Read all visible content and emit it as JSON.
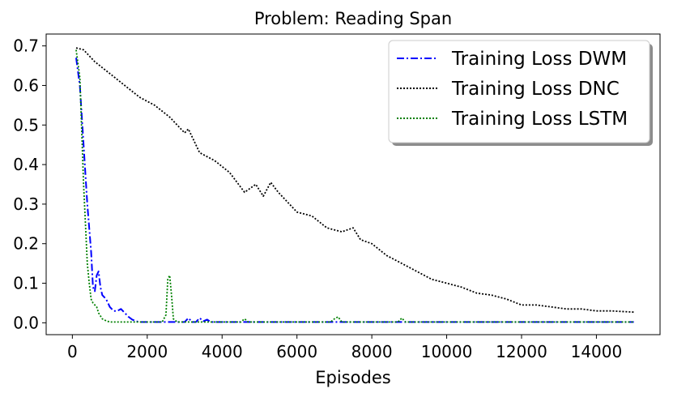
{
  "chart_data": {
    "type": "line",
    "title": "Problem: Reading Span",
    "xlabel": "Episodes",
    "ylabel": "",
    "xlim": [
      -700,
      15700
    ],
    "ylim": [
      -0.03,
      0.73
    ],
    "xticks": [
      0,
      2000,
      4000,
      6000,
      8000,
      10000,
      12000,
      14000
    ],
    "xtick_labels": [
      "0",
      "2000",
      "4000",
      "6000",
      "8000",
      "10000",
      "12000",
      "14000"
    ],
    "yticks": [
      0.0,
      0.1,
      0.2,
      0.3,
      0.4,
      0.5,
      0.6,
      0.7
    ],
    "ytick_labels": [
      "0.0",
      "0.1",
      "0.2",
      "0.3",
      "0.4",
      "0.5",
      "0.6",
      "0.7"
    ],
    "grid": false,
    "legend_position": "top-right",
    "series": [
      {
        "name": "Training Loss DWM",
        "color": "#0000ff",
        "style": "dashdot",
        "x": [
          100,
          200,
          300,
          400,
          500,
          550,
          600,
          650,
          700,
          750,
          800,
          900,
          1000,
          1100,
          1200,
          1300,
          1400,
          1500,
          1600,
          1700,
          1800,
          2000,
          2500,
          3000,
          3100,
          3200,
          3300,
          3400,
          3500,
          3600,
          3700,
          4000,
          6000,
          8000,
          10000,
          12000,
          14000,
          15000
        ],
        "y": [
          0.67,
          0.6,
          0.45,
          0.3,
          0.18,
          0.09,
          0.08,
          0.12,
          0.13,
          0.09,
          0.07,
          0.06,
          0.04,
          0.03,
          0.03,
          0.035,
          0.025,
          0.015,
          0.008,
          0.004,
          0.002,
          0.002,
          0.002,
          0.002,
          0.012,
          0.002,
          0.002,
          0.012,
          0.004,
          0.008,
          0.002,
          0.002,
          0.002,
          0.002,
          0.002,
          0.002,
          0.002,
          0.002
        ]
      },
      {
        "name": "Training Loss DNC",
        "color": "#000000",
        "style": "dotted",
        "x": [
          100,
          300,
          600,
          1000,
          1400,
          1800,
          2200,
          2600,
          3000,
          3100,
          3400,
          3800,
          4200,
          4600,
          4900,
          5100,
          5300,
          5500,
          5800,
          6000,
          6400,
          6800,
          7200,
          7500,
          7700,
          8000,
          8400,
          8800,
          9200,
          9600,
          10000,
          10400,
          10800,
          11200,
          11600,
          12000,
          12400,
          12800,
          13200,
          13600,
          14000,
          14400,
          15000
        ],
        "y": [
          0.695,
          0.69,
          0.66,
          0.63,
          0.6,
          0.57,
          0.55,
          0.52,
          0.48,
          0.49,
          0.43,
          0.41,
          0.38,
          0.33,
          0.35,
          0.32,
          0.355,
          0.33,
          0.3,
          0.28,
          0.27,
          0.24,
          0.23,
          0.24,
          0.21,
          0.2,
          0.17,
          0.15,
          0.13,
          0.11,
          0.1,
          0.09,
          0.075,
          0.07,
          0.06,
          0.045,
          0.045,
          0.04,
          0.035,
          0.035,
          0.03,
          0.03,
          0.027
        ]
      },
      {
        "name": "Training Loss LSTM",
        "color": "#008000",
        "style": "dotted",
        "x": [
          100,
          200,
          300,
          400,
          450,
          500,
          550,
          600,
          650,
          700,
          800,
          900,
          1000,
          1200,
          1500,
          2000,
          2400,
          2500,
          2550,
          2600,
          2650,
          2700,
          2800,
          3000,
          4000,
          4500,
          4600,
          4700,
          5000,
          6000,
          6900,
          7000,
          7100,
          7200,
          8000,
          8700,
          8800,
          8900,
          9000,
          12000,
          15000
        ],
        "y": [
          0.69,
          0.62,
          0.35,
          0.15,
          0.1,
          0.06,
          0.05,
          0.045,
          0.04,
          0.025,
          0.01,
          0.005,
          0.002,
          0.002,
          0.002,
          0.002,
          0.002,
          0.02,
          0.11,
          0.12,
          0.07,
          0.01,
          0.002,
          0.002,
          0.002,
          0.002,
          0.01,
          0.002,
          0.002,
          0.002,
          0.002,
          0.01,
          0.015,
          0.002,
          0.002,
          0.002,
          0.012,
          0.002,
          0.002,
          0.002,
          0.002
        ]
      }
    ]
  }
}
